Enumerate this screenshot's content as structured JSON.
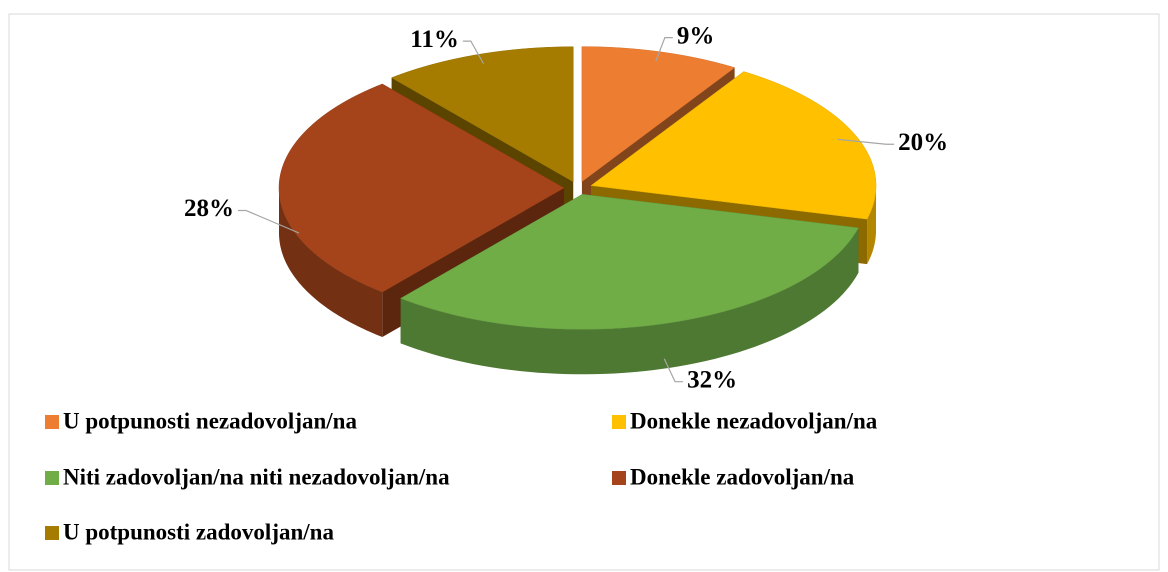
{
  "chart_data": {
    "type": "pie",
    "three_d": true,
    "exploded": true,
    "categories": [
      "U potpunosti nezadovoljan/na",
      "Donekle nezadovoljan/na",
      "Niti zadovoljan/na niti nezadovoljan/na",
      "Donekle zadovoljan/na",
      "U potpunosti zadovoljan/na"
    ],
    "values": [
      9,
      20,
      32,
      28,
      11
    ],
    "value_labels": [
      "9%",
      "20%",
      "32%",
      "28%",
      "11%"
    ],
    "colors": [
      "#ed7d31",
      "#ffc000",
      "#70ad47",
      "#a5441a",
      "#a67c00"
    ],
    "legend": "bottom"
  }
}
